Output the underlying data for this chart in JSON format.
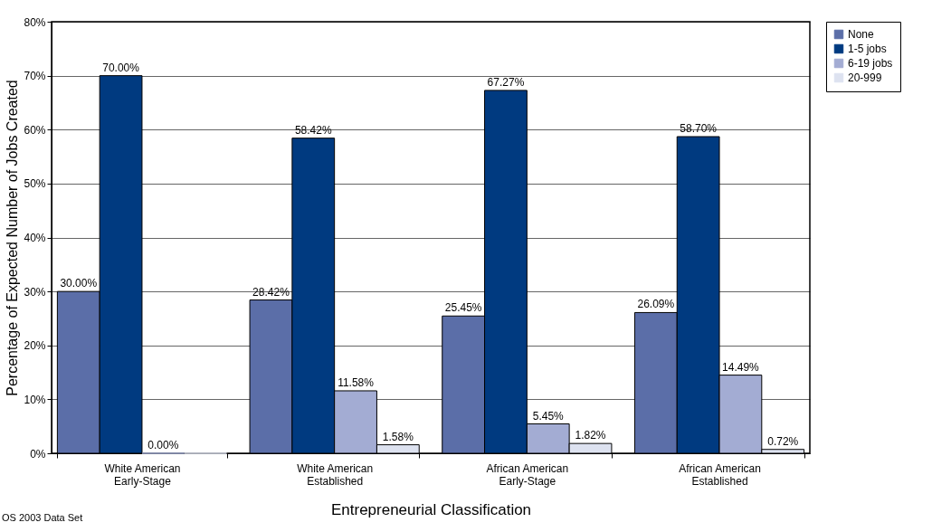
{
  "chart_data": {
    "type": "bar",
    "xlabel": "Entrepreneurial Classification",
    "ylabel": "Percentage of Expected Number of Jobs Created",
    "categories": [
      "White American\nEarly-Stage",
      "White American\nEstablished",
      "African American\nEarly-Stage",
      "African American\nEstablished"
    ],
    "series": [
      {
        "name": "None",
        "color": "#5b6ea8",
        "values": [
          30.0,
          28.42,
          25.45,
          26.09
        ],
        "value_labels": [
          "30.00%",
          "28.42%",
          "25.45%",
          "26.09%"
        ]
      },
      {
        "name": "1-5 jobs",
        "color": "#003a80",
        "values": [
          70.0,
          58.42,
          67.27,
          58.7
        ],
        "value_labels": [
          "70.00%",
          "58.42%",
          "67.27%",
          "58.70%"
        ]
      },
      {
        "name": "6-19 jobs",
        "color": "#a3acd3",
        "values": [
          0.0,
          11.58,
          5.45,
          14.49
        ],
        "value_labels": [
          "0.00%",
          "11.58%",
          "5.45%",
          "14.49%"
        ]
      },
      {
        "name": "20-999",
        "color": "#dde2f0",
        "values": [
          0,
          1.58,
          1.82,
          0.72
        ],
        "value_labels": [
          null,
          "1.58%",
          "1.82%",
          "0.72%"
        ]
      }
    ],
    "ylim": [
      0,
      80
    ],
    "yticks": [
      {
        "value": 0,
        "label": "0%"
      },
      {
        "value": 10,
        "label": "10%"
      },
      {
        "value": 20,
        "label": "20%"
      },
      {
        "value": 30,
        "label": "30%"
      },
      {
        "value": 40,
        "label": "40%"
      },
      {
        "value": 50,
        "label": "50%"
      },
      {
        "value": 60,
        "label": "60%"
      },
      {
        "value": 70,
        "label": "70%"
      },
      {
        "value": 80,
        "label": "80%"
      }
    ],
    "grid": "y",
    "legend": "right",
    "annotations": [
      "OS 2003 Data Set"
    ]
  }
}
